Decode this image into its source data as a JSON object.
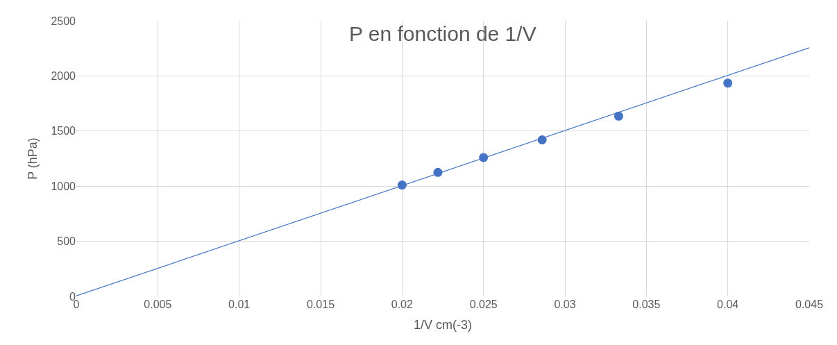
{
  "chart_data": {
    "type": "scatter",
    "title": "P en fonction de 1/V",
    "xlabel": "1/V cm(-3)",
    "ylabel": "P (hPa)",
    "x": [
      0.02,
      0.0222,
      0.025,
      0.0286,
      0.0333,
      0.04
    ],
    "series": [
      {
        "color": "#4472c4",
        "marker": "circle",
        "values": [
          1010,
          1125,
          1260,
          1420,
          1635,
          1935
        ]
      },
      {
        "type": "line",
        "color": "#4472c4",
        "marker": "none",
        "x": [
          0,
          0.045
        ],
        "values": [
          5,
          2255
        ]
      }
    ],
    "xlim": [
      0,
      0.045
    ],
    "xticks": [
      0,
      0.005,
      0.01,
      0.015,
      0.02,
      0.025,
      0.03,
      0.035,
      0.04,
      0.045
    ],
    "ylim": [
      0,
      2500
    ],
    "yticks": [
      0,
      500,
      1000,
      1500,
      2000,
      2500
    ],
    "grid": true
  }
}
